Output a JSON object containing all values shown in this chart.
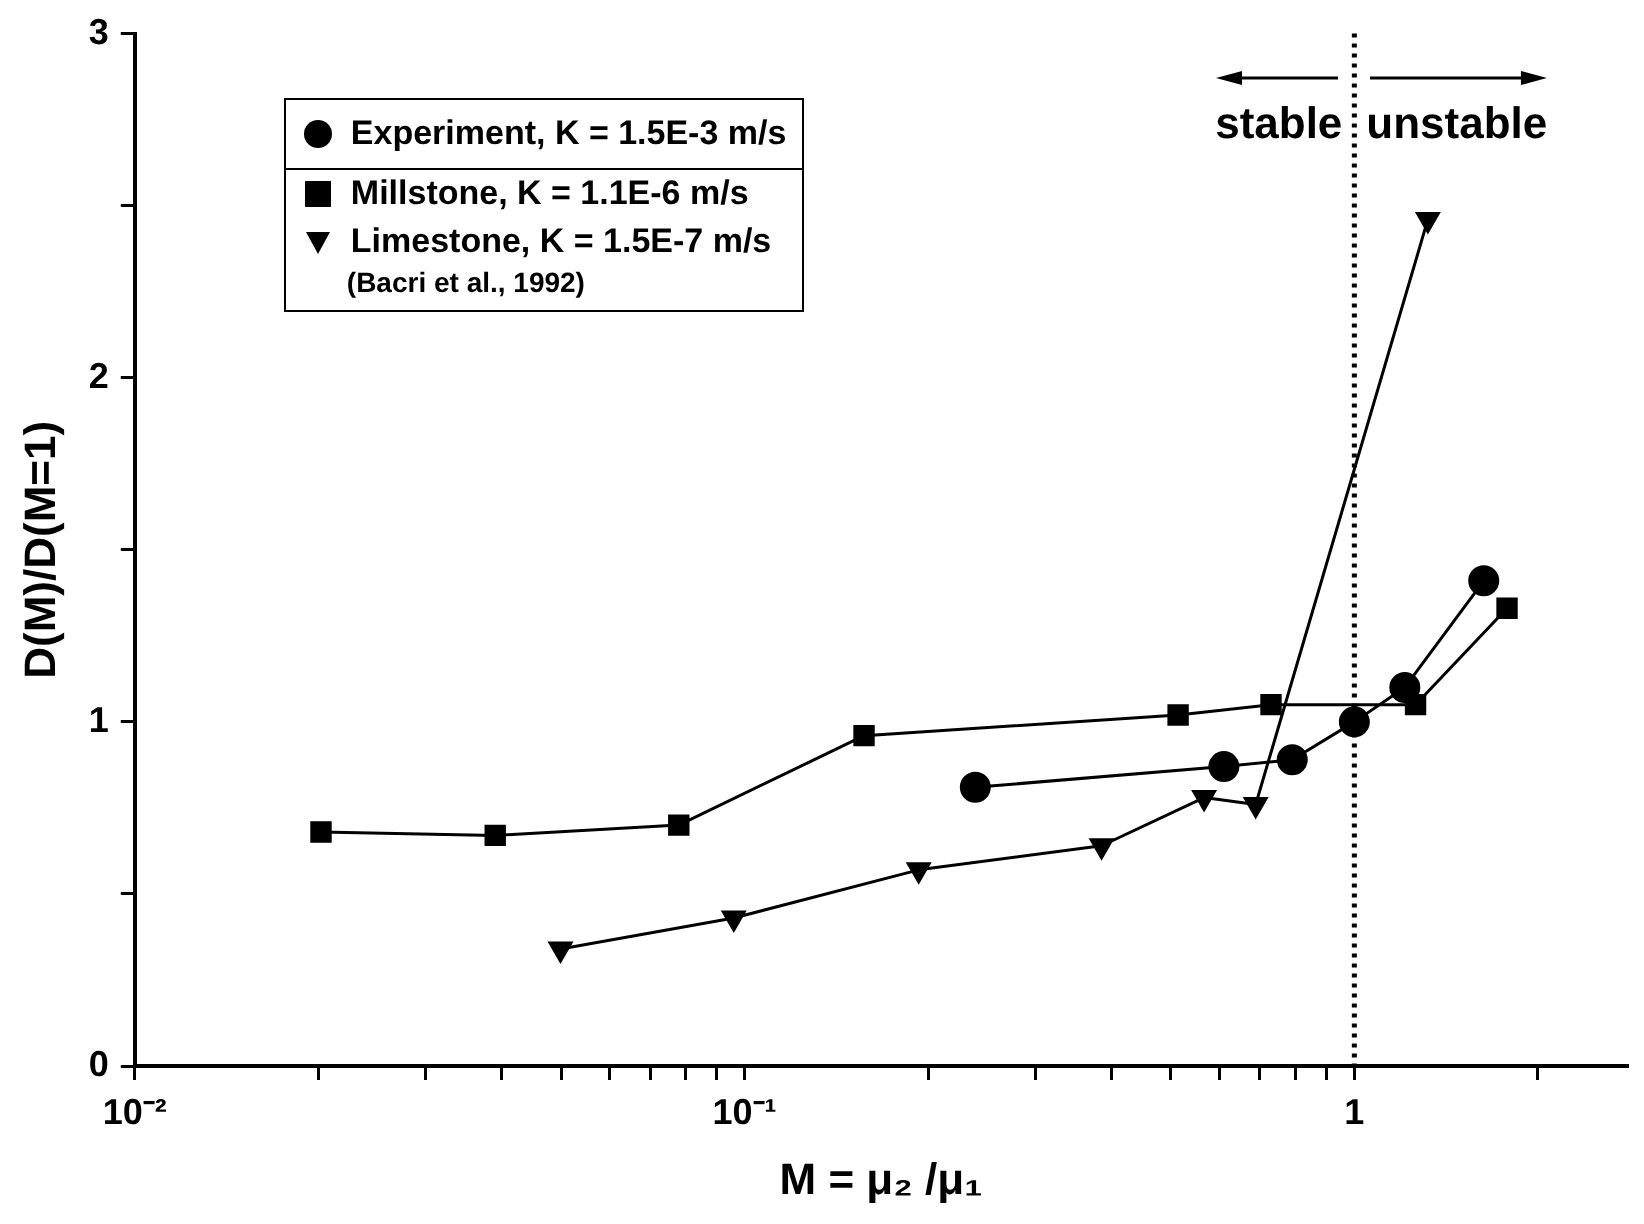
{
  "chart_data": {
    "type": "line",
    "xlabel": "M = μ₂ /μ₁",
    "ylabel": "D(M)/D(M=1)",
    "log": "x",
    "grid": false,
    "legend": "top left",
    "xlim": [
      0.01,
      2.8
    ],
    "ylim": [
      0,
      3
    ],
    "xticks": [
      {
        "value": 0.01,
        "label": "10⁻²"
      },
      {
        "value": 0.02,
        "label": null
      },
      {
        "value": 0.03,
        "label": null
      },
      {
        "value": 0.04,
        "label": null
      },
      {
        "value": 0.05,
        "label": null
      },
      {
        "value": 0.06,
        "label": null
      },
      {
        "value": 0.07,
        "label": null
      },
      {
        "value": 0.08,
        "label": null
      },
      {
        "value": 0.09,
        "label": null
      },
      {
        "value": 0.1,
        "label": "10⁻¹"
      },
      {
        "value": 0.2,
        "label": null
      },
      {
        "value": 0.3,
        "label": null
      },
      {
        "value": 0.4,
        "label": null
      },
      {
        "value": 0.5,
        "label": null
      },
      {
        "value": 0.6,
        "label": null
      },
      {
        "value": 0.7,
        "label": null
      },
      {
        "value": 0.8,
        "label": null
      },
      {
        "value": 0.9,
        "label": null
      },
      1,
      {
        "value": 2,
        "label": null
      }
    ],
    "yticks": [
      0,
      {
        "value": 0.5,
        "label": null
      },
      1,
      {
        "value": 1.5,
        "label": null
      },
      2,
      {
        "value": 2.5,
        "label": null
      },
      3
    ],
    "ref_lines": [
      {
        "axis": "x",
        "value": 1,
        "line_style": "dotted",
        "color": "#000000"
      }
    ],
    "annotations": [
      "stable",
      "unstable",
      "(Bacri et al., 1992)"
    ],
    "series": [
      {
        "name": "Experiment, K = 1.5E-3 m/s",
        "color": "#000000",
        "marker": "circle",
        "x": [
          0.239,
          0.611,
          0.791,
          1.0,
          1.21,
          1.63
        ],
        "values": [
          0.81,
          0.87,
          0.89,
          1.0,
          1.1,
          1.41
        ]
      },
      {
        "name": "Millstone, K = 1.1E-6 m/s",
        "color": "#000000",
        "marker": "square",
        "x": [
          0.0202,
          0.039,
          0.078,
          0.157,
          0.514,
          0.73,
          1.26,
          1.78
        ],
        "values": [
          0.68,
          0.67,
          0.7,
          0.96,
          1.02,
          1.05,
          1.05,
          1.33
        ]
      },
      {
        "name": "Limestone, K = 1.5E-7 m/s",
        "color": "#000000",
        "marker": "triangle",
        "x": [
          0.0499,
          0.096,
          0.193,
          0.385,
          0.567,
          0.689,
          1.32
        ],
        "values": [
          0.34,
          0.43,
          0.57,
          0.64,
          0.78,
          0.76,
          2.46
        ]
      }
    ]
  }
}
